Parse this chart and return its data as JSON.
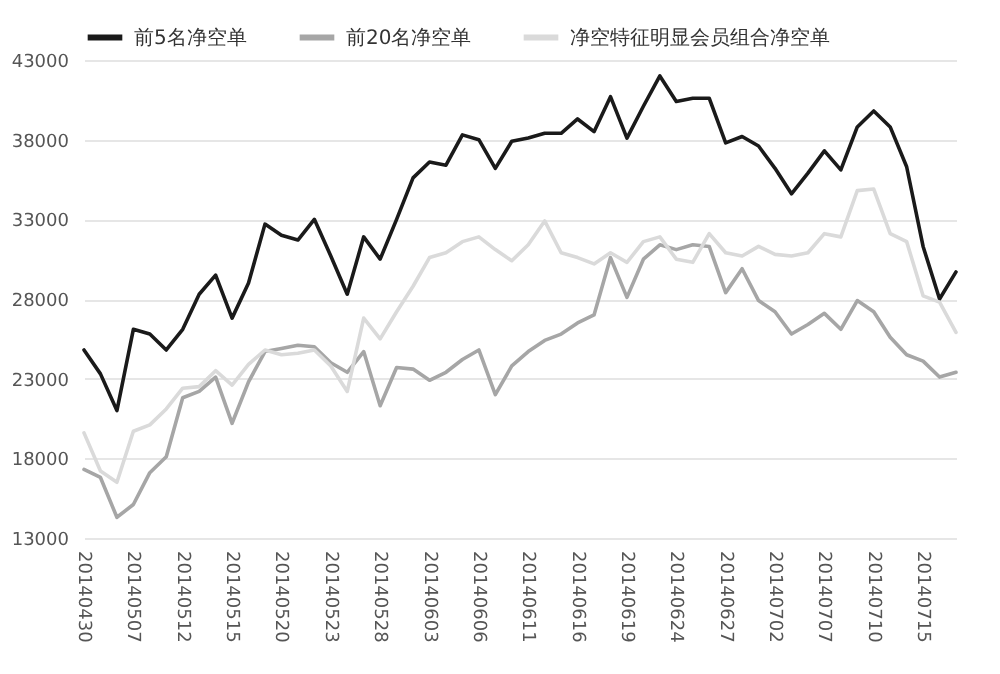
{
  "chart_data": {
    "type": "line",
    "legend": "top",
    "grid": "y",
    "marker": "none",
    "line_style": "solid",
    "categories": [
      "20140430",
      null,
      null,
      "20140507",
      null,
      null,
      "20140512",
      null,
      null,
      "20140515",
      null,
      null,
      "20140520",
      null,
      null,
      "20140523",
      null,
      null,
      "20140528",
      null,
      null,
      "20140603",
      null,
      null,
      "20140606",
      null,
      null,
      "20140611",
      null,
      null,
      "20140616",
      null,
      null,
      "20140619",
      null,
      null,
      "20140624",
      null,
      null,
      "20140627",
      null,
      null,
      "20140702",
      null,
      null,
      "20140707",
      null,
      null,
      "20140710",
      null,
      null,
      "20140715",
      null,
      null
    ],
    "ylim": [
      13000,
      43000
    ],
    "yticks": [
      13000,
      18000,
      23000,
      28000,
      33000,
      38000,
      43000
    ],
    "series": [
      {
        "name": "前5名净空单",
        "color": "#1a1a1a",
        "values": [
          24800,
          23300,
          21000,
          26100,
          25800,
          24800,
          26100,
          28300,
          29500,
          26800,
          29000,
          32700,
          32000,
          31700,
          33000,
          30700,
          28300,
          31900,
          30500,
          33000,
          35600,
          36600,
          36400,
          38300,
          38000,
          36200,
          37900,
          38100,
          38400,
          38400,
          39300,
          38500,
          40700,
          38100,
          40100,
          42000,
          40400,
          40600,
          40600,
          37800,
          38200,
          37600,
          36200,
          34600,
          35900,
          37300,
          36100,
          38800,
          39800,
          38800,
          36300,
          31300,
          28000,
          29700
        ]
      },
      {
        "name": "前20名净空单",
        "color": "#a6a6a6",
        "values": [
          17300,
          16800,
          14300,
          15100,
          17100,
          18100,
          21800,
          22200,
          23100,
          20200,
          22800,
          24700,
          24900,
          25100,
          25000,
          24000,
          23400,
          24700,
          21300,
          23700,
          23600,
          22900,
          23400,
          24200,
          24800,
          22000,
          23800,
          24700,
          25400,
          25800,
          26500,
          27000,
          30600,
          28100,
          30500,
          31400,
          31100,
          31400,
          31300,
          28400,
          29900,
          27900,
          27200,
          25800,
          26400,
          27100,
          26100,
          27900,
          27200,
          25600,
          24500,
          24100,
          23100,
          23400
        ]
      },
      {
        "name": "净空特征明显会员组合净空单",
        "color": "#dadada",
        "values": [
          19600,
          17200,
          16500,
          19700,
          20100,
          21100,
          22400,
          22500,
          23500,
          22600,
          23900,
          24800,
          24500,
          24600,
          24800,
          23800,
          22200,
          26800,
          25500,
          27200,
          28800,
          30600,
          30900,
          31600,
          31900,
          31100,
          30400,
          31400,
          32900,
          30900,
          30600,
          30200,
          30900,
          30300,
          31600,
          31900,
          30500,
          30300,
          32100,
          30900,
          30700,
          31300,
          30800,
          30700,
          30900,
          32100,
          31900,
          34800,
          34900,
          32100,
          31600,
          28200,
          27800,
          25900
        ]
      }
    ]
  }
}
